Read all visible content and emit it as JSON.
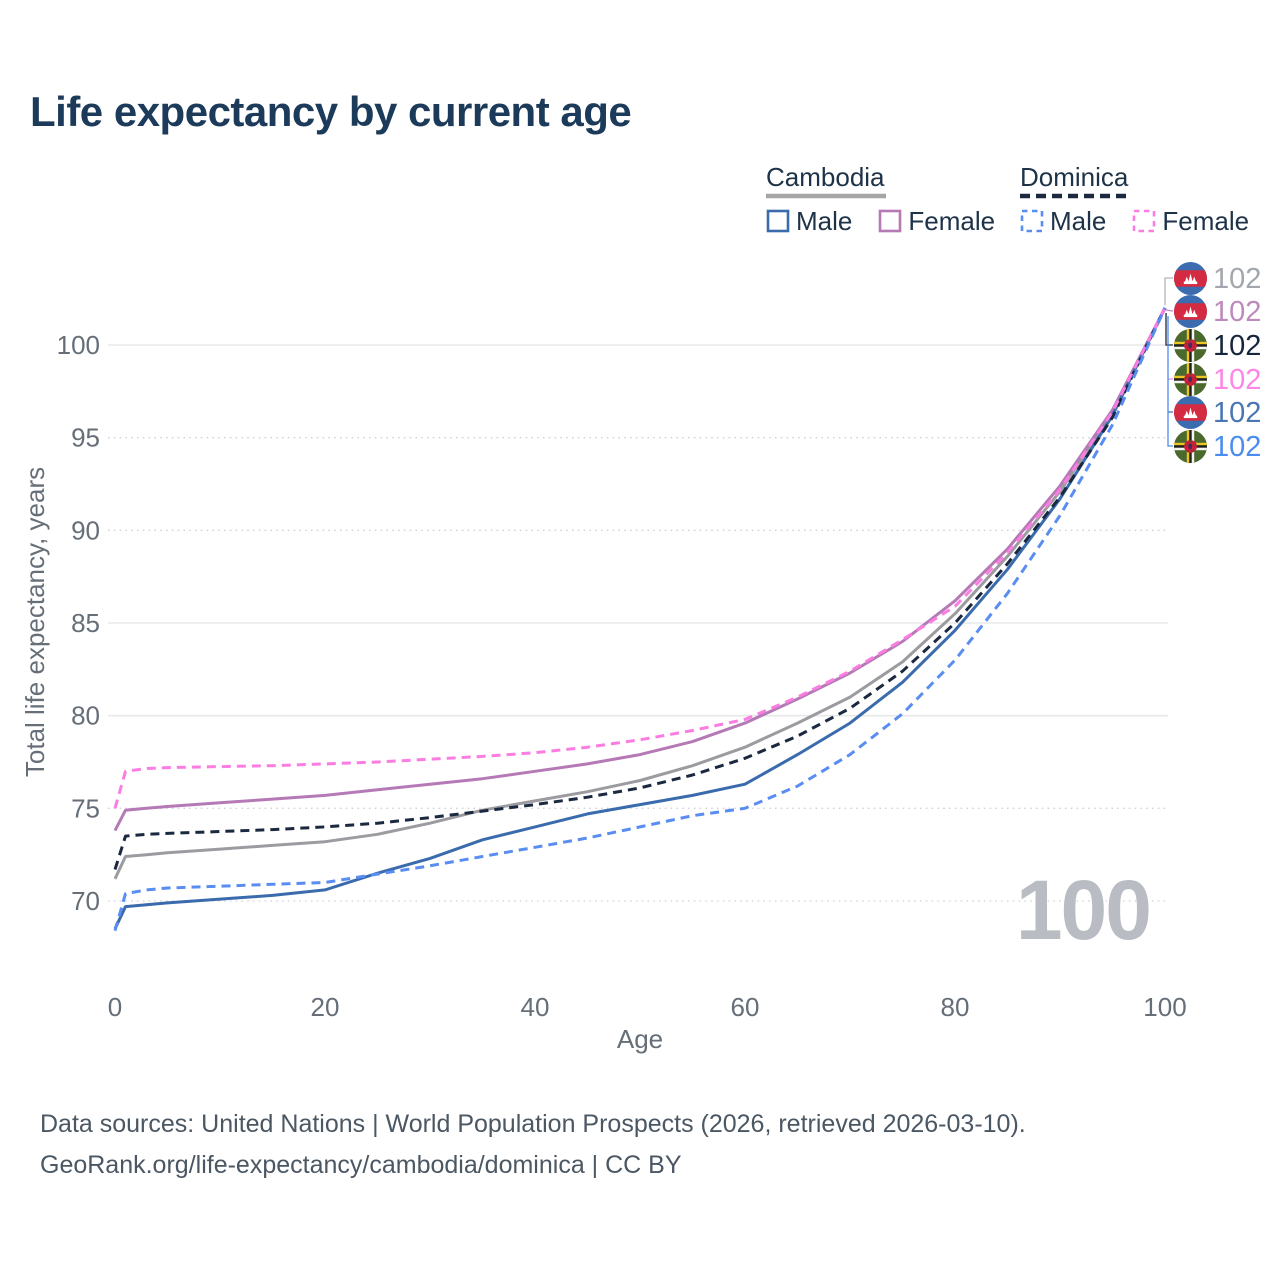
{
  "title": "Life expectancy by current age",
  "legend": {
    "groups": [
      {
        "label": "Cambodia",
        "line_style": "solid",
        "underline_color": "#a6a6a6",
        "items": [
          {
            "label": "Male",
            "color": "#3a6bac",
            "dash": "solid"
          },
          {
            "label": "Female",
            "color": "#b579b5",
            "dash": "solid"
          }
        ]
      },
      {
        "label": "Dominica",
        "line_style": "dashed",
        "underline_color": "#1b2940",
        "items": [
          {
            "label": "Male",
            "color": "#5a8df2",
            "dash": "dashed"
          },
          {
            "label": "Female",
            "color": "#fb7de2",
            "dash": "dashed"
          }
        ]
      }
    ]
  },
  "end_labels": [
    {
      "flag": "cambodia",
      "series": "Cambodia (both sexes)",
      "value": "102",
      "color": "#a2a7ad"
    },
    {
      "flag": "cambodia",
      "series": "Cambodia Female",
      "value": "102",
      "color": "#bd8abd"
    },
    {
      "flag": "dominica",
      "series": "Dominica (both sexes)",
      "value": "102",
      "color": "#17263c"
    },
    {
      "flag": "dominica",
      "series": "Dominica Female",
      "value": "102",
      "color": "#fd86e8"
    },
    {
      "flag": "cambodia",
      "series": "Cambodia Male",
      "value": "102",
      "color": "#4a77b4"
    },
    {
      "flag": "dominica",
      "series": "Dominica Male",
      "value": "102",
      "color": "#4a8cf0"
    }
  ],
  "watermark": "100",
  "footer": {
    "line1": "Data sources: United Nations | World Population Prospects (2026, retrieved 2026-03-10).",
    "line2": "GeoRank.org/life-expectancy/cambodia/dominica | CC BY"
  },
  "chart_data": {
    "type": "line",
    "title": "Life expectancy by current age",
    "xlabel": "Age",
    "ylabel": "Total life expectancy, years",
    "xlim": [
      0,
      100
    ],
    "ylim": [
      67.5,
      103
    ],
    "xticks": [
      0,
      20,
      40,
      60,
      80,
      100
    ],
    "yticks": [
      70,
      75,
      80,
      85,
      90,
      95,
      100
    ],
    "grid": "horizontal",
    "legend_position": "top-right",
    "x": [
      0,
      1,
      3,
      5,
      10,
      15,
      20,
      25,
      30,
      35,
      40,
      45,
      50,
      55,
      60,
      65,
      70,
      75,
      80,
      85,
      90,
      95,
      100
    ],
    "series": [
      {
        "name": "Cambodia (both sexes)",
        "country": "Cambodia",
        "dash": "solid",
        "color": "#9b9ba0",
        "values": [
          71.2,
          72.4,
          72.5,
          72.6,
          72.8,
          73.0,
          73.2,
          73.6,
          74.2,
          74.9,
          75.4,
          75.9,
          76.5,
          77.3,
          78.3,
          79.6,
          81.0,
          82.9,
          85.5,
          88.6,
          92.1,
          96.4,
          102
        ]
      },
      {
        "name": "Cambodia Female",
        "country": "Cambodia",
        "dash": "solid",
        "color": "#b579b5",
        "values": [
          73.8,
          74.9,
          75.0,
          75.1,
          75.3,
          75.5,
          75.7,
          76.0,
          76.3,
          76.6,
          77.0,
          77.4,
          77.9,
          78.6,
          79.6,
          80.9,
          82.3,
          84.0,
          86.2,
          89.0,
          92.4,
          96.5,
          102
        ]
      },
      {
        "name": "Cambodia Male",
        "country": "Cambodia",
        "dash": "solid",
        "color": "#3a6bac",
        "values": [
          68.5,
          69.7,
          69.8,
          69.9,
          70.1,
          70.3,
          70.6,
          71.5,
          72.3,
          73.3,
          74.0,
          74.7,
          75.2,
          75.7,
          76.3,
          77.9,
          79.6,
          81.8,
          84.6,
          87.9,
          91.7,
          96.2,
          102
        ]
      },
      {
        "name": "Dominica (both sexes)",
        "country": "Dominica",
        "dash": "dashed",
        "color": "#1b2940",
        "values": [
          71.7,
          73.5,
          73.6,
          73.65,
          73.75,
          73.85,
          74.0,
          74.2,
          74.5,
          74.85,
          75.2,
          75.6,
          76.1,
          76.8,
          77.7,
          78.9,
          80.4,
          82.4,
          85.0,
          88.2,
          91.8,
          96.1,
          102
        ]
      },
      {
        "name": "Dominica Female",
        "country": "Dominica",
        "dash": "dashed",
        "color": "#fb7de2",
        "values": [
          75.0,
          77.0,
          77.15,
          77.2,
          77.25,
          77.3,
          77.4,
          77.5,
          77.65,
          77.8,
          78.0,
          78.3,
          78.7,
          79.2,
          79.8,
          81.0,
          82.4,
          84.1,
          85.9,
          88.8,
          92.2,
          96.4,
          102
        ]
      },
      {
        "name": "Dominica Male",
        "country": "Dominica",
        "dash": "dashed",
        "color": "#5a8df2",
        "values": [
          68.4,
          70.4,
          70.6,
          70.7,
          70.8,
          70.9,
          71.0,
          71.45,
          71.9,
          72.4,
          72.9,
          73.4,
          74.0,
          74.6,
          75.0,
          76.2,
          77.9,
          80.1,
          83.0,
          86.6,
          90.8,
          95.7,
          102
        ]
      }
    ]
  }
}
